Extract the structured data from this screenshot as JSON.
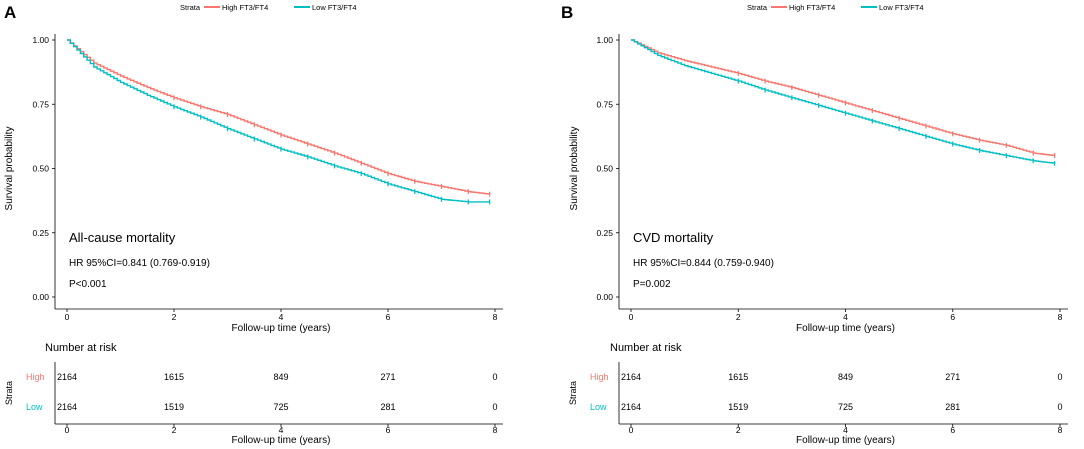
{
  "chart_data": [
    {
      "type": "line",
      "panel": "A",
      "legend": {
        "title": "Strata",
        "entries": [
          "High FT3/FT4",
          "Low FT3/FT4"
        ]
      },
      "ylabel": "Survival probability",
      "xlabel": "Follow-up time (years)",
      "xlim": [
        0,
        8
      ],
      "ylim": [
        0,
        1
      ],
      "x_ticks": [
        "0",
        "2",
        "4",
        "6",
        "8"
      ],
      "y_ticks": [
        "0.00",
        "0.25",
        "0.50",
        "0.75",
        "1.00"
      ],
      "series": [
        {
          "name": "High FT3/FT4",
          "color": "#F8766D",
          "x": [
            0,
            0.5,
            1,
            1.5,
            2,
            2.5,
            3,
            3.5,
            4,
            4.5,
            5,
            5.5,
            6,
            6.5,
            7,
            7.5,
            7.9
          ],
          "y": [
            1.0,
            0.91,
            0.86,
            0.815,
            0.775,
            0.74,
            0.71,
            0.67,
            0.63,
            0.595,
            0.56,
            0.52,
            0.48,
            0.45,
            0.43,
            0.41,
            0.4
          ]
        },
        {
          "name": "Low FT3/FT4",
          "color": "#00BFC4",
          "x": [
            0,
            0.5,
            1,
            1.5,
            2,
            2.5,
            3,
            3.5,
            4,
            4.5,
            5,
            5.5,
            6,
            6.5,
            7,
            7.5,
            7.9
          ],
          "y": [
            1.0,
            0.895,
            0.835,
            0.785,
            0.74,
            0.7,
            0.655,
            0.615,
            0.575,
            0.545,
            0.51,
            0.48,
            0.44,
            0.41,
            0.38,
            0.37,
            0.37
          ]
        }
      ],
      "annotations": {
        "title": "All-cause mortality",
        "hr": "HR 95%CI=0.841 (0.769-0.919)",
        "p": "P<0.001"
      },
      "risk_table": {
        "title": "Number at risk",
        "strata_label": "Strata",
        "xlabel": "Follow-up time (years)",
        "rows": [
          {
            "label": "High",
            "color": "#F8766D",
            "values": [
              "2164",
              "1615",
              "849",
              "271",
              "0"
            ]
          },
          {
            "label": "Low",
            "color": "#00BFC4",
            "values": [
              "2164",
              "1519",
              "725",
              "281",
              "0"
            ]
          }
        ]
      }
    },
    {
      "type": "line",
      "panel": "B",
      "legend": {
        "title": "Strata",
        "entries": [
          "High FT3/FT4",
          "Low FT3/FT4"
        ]
      },
      "ylabel": "Survival probability",
      "xlabel": "Follow-up time (years)",
      "xlim": [
        0,
        8
      ],
      "ylim": [
        0,
        1
      ],
      "x_ticks": [
        "0",
        "2",
        "4",
        "6",
        "8"
      ],
      "y_ticks": [
        "0.00",
        "0.25",
        "0.50",
        "0.75",
        "1.00"
      ],
      "series": [
        {
          "name": "High FT3/FT4",
          "color": "#F8766D",
          "x": [
            0,
            0.5,
            1,
            1.5,
            2,
            2.5,
            3,
            3.5,
            4,
            4.5,
            5,
            5.5,
            6,
            6.5,
            7,
            7.5,
            7.9
          ],
          "y": [
            1.0,
            0.95,
            0.92,
            0.895,
            0.87,
            0.84,
            0.815,
            0.785,
            0.755,
            0.725,
            0.695,
            0.665,
            0.635,
            0.61,
            0.59,
            0.56,
            0.55
          ]
        },
        {
          "name": "Low FT3/FT4",
          "color": "#00BFC4",
          "x": [
            0,
            0.5,
            1,
            1.5,
            2,
            2.5,
            3,
            3.5,
            4,
            4.5,
            5,
            5.5,
            6,
            6.5,
            7,
            7.5,
            7.9
          ],
          "y": [
            1.0,
            0.94,
            0.9,
            0.87,
            0.84,
            0.805,
            0.775,
            0.745,
            0.715,
            0.685,
            0.655,
            0.625,
            0.595,
            0.57,
            0.55,
            0.53,
            0.52
          ]
        }
      ],
      "annotations": {
        "title": "CVD mortality",
        "hr": "HR 95%CI=0.844 (0.759-0.940)",
        "p": "P=0.002"
      },
      "risk_table": {
        "title": "Number at risk",
        "strata_label": "Strata",
        "xlabel": "Follow-up time (years)",
        "rows": [
          {
            "label": "High",
            "color": "#F8766D",
            "values": [
              "2164",
              "1615",
              "849",
              "271",
              "0"
            ]
          },
          {
            "label": "Low",
            "color": "#00BFC4",
            "values": [
              "2164",
              "1519",
              "725",
              "281",
              "0"
            ]
          }
        ]
      }
    }
  ]
}
